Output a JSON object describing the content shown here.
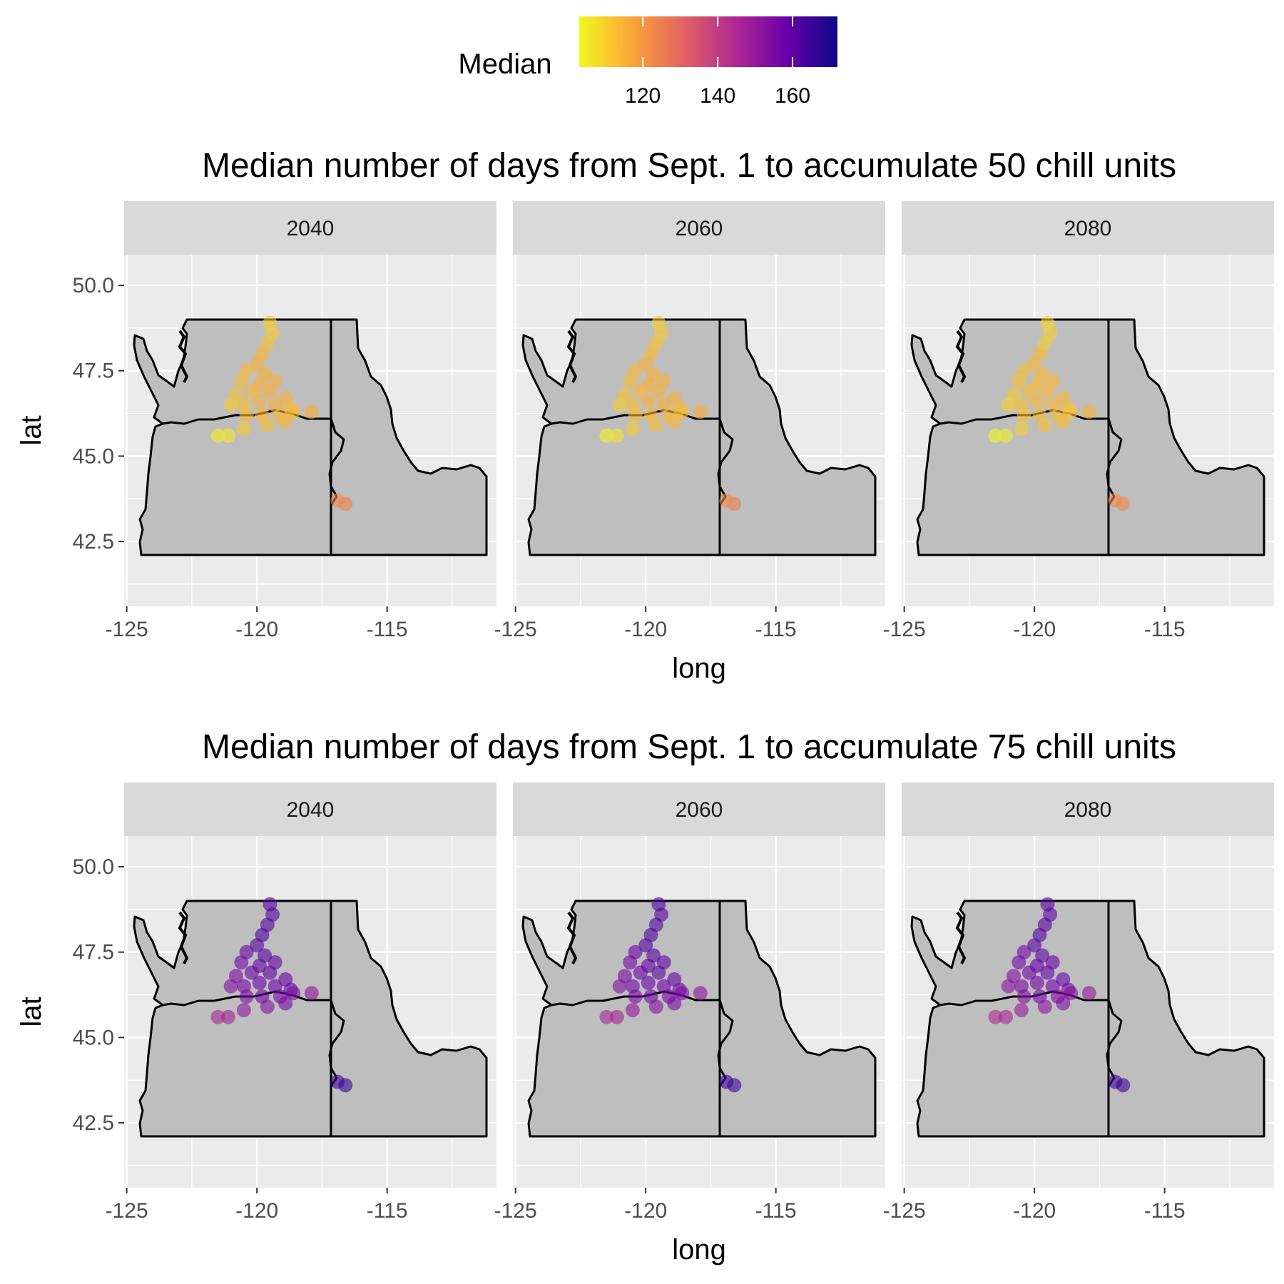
{
  "legend": {
    "title": "Median",
    "ticks": [
      "120",
      "140",
      "160"
    ],
    "tick_values": [
      120,
      140,
      160
    ],
    "range": [
      103,
      172
    ],
    "colors": [
      "#f0f921",
      "#fca636",
      "#e16462",
      "#b12a90",
      "#6a00a8",
      "#0d0887"
    ]
  },
  "x_axis": {
    "label": "long",
    "ticks": [
      "-125",
      "-120",
      "-115"
    ],
    "tick_values": [
      -125,
      -120,
      -115
    ],
    "range": [
      -125.1,
      -110.8
    ]
  },
  "y_axis": {
    "label": "lat",
    "ticks": [
      "50.0",
      "47.5",
      "45.0",
      "42.5"
    ],
    "tick_values": [
      50,
      47.5,
      45,
      42.5
    ],
    "range": [
      40.6,
      50.9
    ]
  },
  "colors": {
    "panel_background": "#ebebeb",
    "strip_background": "#d9d9d9",
    "grid": "#ffffff",
    "land": "#bebebe",
    "border": "#000000"
  },
  "rows": [
    {
      "title": "Median number of days from Sept. 1 to accumulate 50 chill units",
      "facets": [
        {
          "label": "2040",
          "median": 114
        },
        {
          "label": "2060",
          "median": 114
        },
        {
          "label": "2080",
          "median": 113
        }
      ]
    },
    {
      "title": "Median number of days from Sept. 1 to accumulate 75 chill units",
      "facets": [
        {
          "label": "2040",
          "median": 158
        },
        {
          "label": "2060",
          "median": 158
        },
        {
          "label": "2080",
          "median": 157
        }
      ]
    }
  ],
  "chart_data": {
    "type": "scatter",
    "x_name": "long",
    "y_name": "lat",
    "color_name": "Median",
    "xlim": [
      -125.1,
      -110.8
    ],
    "ylim": [
      40.6,
      50.9
    ],
    "facets": [
      "2040",
      "2060",
      "2080"
    ],
    "states_outlined": [
      "Washington",
      "Oregon",
      "Idaho"
    ],
    "sites": [
      {
        "long": -119.5,
        "lat": 48.9,
        "d50": 110,
        "d75": 162
      },
      {
        "long": -119.4,
        "lat": 48.6,
        "d50": 111,
        "d75": 161
      },
      {
        "long": -119.6,
        "lat": 48.3,
        "d50": 112,
        "d75": 162
      },
      {
        "long": -119.8,
        "lat": 48.0,
        "d50": 114,
        "d75": 163
      },
      {
        "long": -120.0,
        "lat": 47.7,
        "d50": 115,
        "d75": 162
      },
      {
        "long": -120.4,
        "lat": 47.5,
        "d50": 114,
        "d75": 158
      },
      {
        "long": -119.7,
        "lat": 47.4,
        "d50": 115,
        "d75": 161
      },
      {
        "long": -120.6,
        "lat": 47.2,
        "d50": 113,
        "d75": 157
      },
      {
        "long": -119.9,
        "lat": 47.1,
        "d50": 115,
        "d75": 160
      },
      {
        "long": -119.3,
        "lat": 47.2,
        "d50": 115,
        "d75": 160
      },
      {
        "long": -120.8,
        "lat": 46.8,
        "d50": 112,
        "d75": 155
      },
      {
        "long": -120.2,
        "lat": 46.9,
        "d50": 114,
        "d75": 158
      },
      {
        "long": -119.5,
        "lat": 46.9,
        "d50": 115,
        "d75": 160
      },
      {
        "long": -118.9,
        "lat": 46.7,
        "d50": 115,
        "d75": 159
      },
      {
        "long": -121.0,
        "lat": 46.5,
        "d50": 111,
        "d75": 154
      },
      {
        "long": -120.5,
        "lat": 46.5,
        "d50": 113,
        "d75": 156
      },
      {
        "long": -119.9,
        "lat": 46.6,
        "d50": 115,
        "d75": 158
      },
      {
        "long": -119.3,
        "lat": 46.5,
        "d50": 115,
        "d75": 158
      },
      {
        "long": -118.7,
        "lat": 46.4,
        "d50": 114,
        "d75": 157
      },
      {
        "long": -120.4,
        "lat": 46.2,
        "d50": 113,
        "d75": 155
      },
      {
        "long": -119.8,
        "lat": 46.2,
        "d50": 114,
        "d75": 157
      },
      {
        "long": -119.1,
        "lat": 46.2,
        "d50": 114,
        "d75": 156
      },
      {
        "long": -118.6,
        "lat": 46.3,
        "d50": 113,
        "d75": 155
      },
      {
        "long": -118.9,
        "lat": 46.0,
        "d50": 114,
        "d75": 155
      },
      {
        "long": -120.5,
        "lat": 45.8,
        "d50": 111,
        "d75": 151
      },
      {
        "long": -119.6,
        "lat": 45.9,
        "d50": 113,
        "d75": 153
      },
      {
        "long": -117.9,
        "lat": 46.3,
        "d50": 116,
        "d75": 152
      },
      {
        "long": -121.5,
        "lat": 45.6,
        "d50": 104,
        "d75": 146
      },
      {
        "long": -121.1,
        "lat": 45.6,
        "d50": 106,
        "d75": 147
      },
      {
        "long": -116.9,
        "lat": 43.7,
        "d50": 123,
        "d75": 165
      },
      {
        "long": -116.6,
        "lat": 43.6,
        "d50": 124,
        "d75": 166
      }
    ]
  }
}
